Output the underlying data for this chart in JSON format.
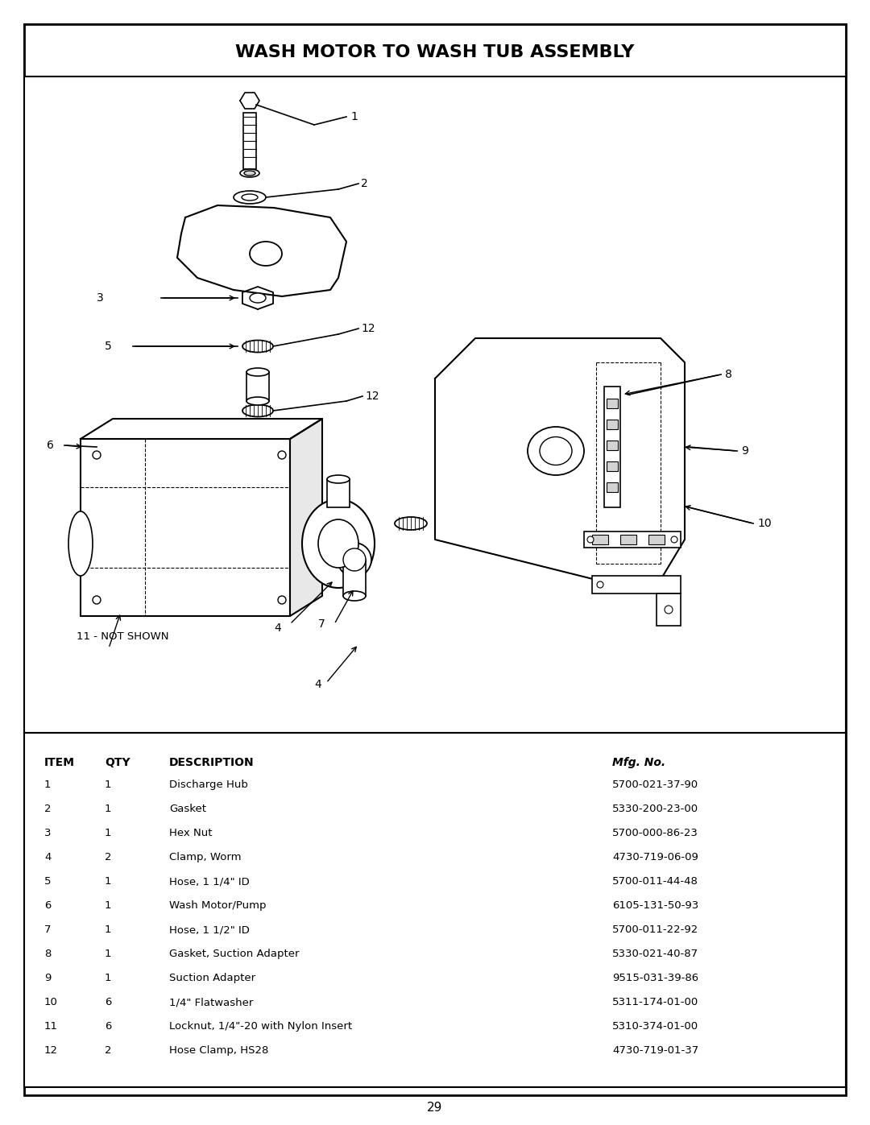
{
  "title": "WASH MOTOR TO WASH TUB ASSEMBLY",
  "page_number": "29",
  "background_color": "#ffffff",
  "border_color": "#000000",
  "text_color": "#000000",
  "parts": [
    {
      "item": "1",
      "qty": "1",
      "description": "Discharge Hub",
      "mfg_no": "5700-021-37-90"
    },
    {
      "item": "2",
      "qty": "1",
      "description": "Gasket",
      "mfg_no": "5330-200-23-00"
    },
    {
      "item": "3",
      "qty": "1",
      "description": "Hex Nut",
      "mfg_no": "5700-000-86-23"
    },
    {
      "item": "4",
      "qty": "2",
      "description": "Clamp, Worm",
      "mfg_no": "4730-719-06-09"
    },
    {
      "item": "5",
      "qty": "1",
      "description": "Hose, 1 1/4\" ID",
      "mfg_no": "5700-011-44-48"
    },
    {
      "item": "6",
      "qty": "1",
      "description": "Wash Motor/Pump",
      "mfg_no": "6105-131-50-93"
    },
    {
      "item": "7",
      "qty": "1",
      "description": "Hose, 1 1/2\" ID",
      "mfg_no": "5700-011-22-92"
    },
    {
      "item": "8",
      "qty": "1",
      "description": "Gasket, Suction Adapter",
      "mfg_no": "5330-021-40-87"
    },
    {
      "item": "9",
      "qty": "1",
      "description": "Suction Adapter",
      "mfg_no": "9515-031-39-86"
    },
    {
      "item": "10",
      "qty": "6",
      "description": "1/4\" Flatwasher",
      "mfg_no": "5311-174-01-00"
    },
    {
      "item": "11",
      "qty": "6",
      "description": "Locknut, 1/4\"-20 with Nylon Insert",
      "mfg_no": "5310-374-01-00"
    },
    {
      "item": "12",
      "qty": "2",
      "description": "Hose Clamp, HS28",
      "mfg_no": "4730-719-01-37"
    }
  ],
  "note": "11 - NOT SHOWN",
  "title_fontsize": 16,
  "header_fontsize": 10,
  "body_fontsize": 9.5,
  "figsize": [
    10.8,
    13.97
  ],
  "dpi": 100
}
